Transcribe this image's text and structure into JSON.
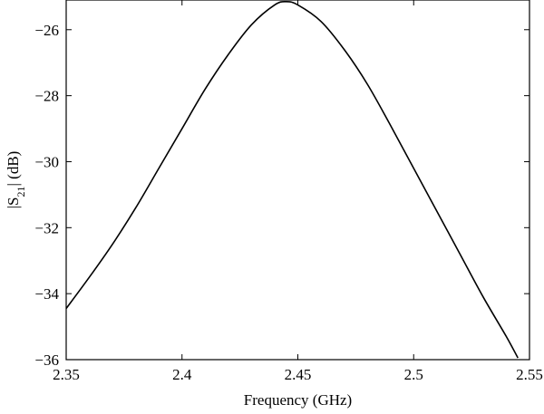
{
  "chart_data": {
    "type": "line",
    "xlabel": "Frequency (GHz)",
    "ylabel": "|S21| (dB)",
    "ylabel_parts": {
      "prefix": "|S",
      "subscript": "21",
      "suffix": "| (dB)"
    },
    "xlim": [
      2.35,
      2.55
    ],
    "ylim": [
      -36,
      -25.1
    ],
    "x_ticks": [
      2.35,
      2.4,
      2.45,
      2.5,
      2.55
    ],
    "x_tick_labels": [
      "2.35",
      "2.4",
      "2.45",
      "2.5",
      "2.55"
    ],
    "y_ticks": [
      -26,
      -28,
      -30,
      -32,
      -34,
      -36
    ],
    "y_tick_labels": [
      "−26",
      "−28",
      "−30",
      "−32",
      "−34",
      "−36"
    ],
    "grid": false,
    "line_color": "#000000",
    "series": [
      {
        "x": [
          2.35,
          2.36,
          2.37,
          2.38,
          2.39,
          2.4,
          2.41,
          2.42,
          2.43,
          2.44,
          2.445,
          2.45,
          2.46,
          2.47,
          2.48,
          2.49,
          2.5,
          2.51,
          2.52,
          2.53,
          2.54,
          2.545
        ],
        "y": [
          -34.45,
          -33.5,
          -32.5,
          -31.4,
          -30.2,
          -29.0,
          -27.8,
          -26.75,
          -25.85,
          -25.25,
          -25.15,
          -25.25,
          -25.75,
          -26.6,
          -27.65,
          -28.9,
          -30.2,
          -31.5,
          -32.8,
          -34.1,
          -35.3,
          -35.95
        ]
      }
    ]
  }
}
